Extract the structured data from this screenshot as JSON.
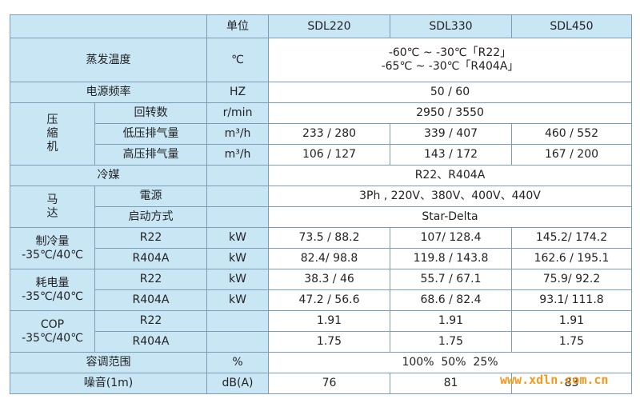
{
  "table": {
    "header": [
      "单位",
      "SDL220",
      "SDL330",
      "SDL450"
    ],
    "evap": {
      "label": "蒸发温度",
      "unit": "℃",
      "lines": [
        "-60℃ ~ -30℃「R22」",
        "-65℃ ~ -30℃「R404A」"
      ]
    },
    "power_freq": {
      "label": "电源频率",
      "unit": "HZ",
      "value": "50 / 60"
    },
    "compressor": {
      "label": [
        "压",
        "縮",
        "机"
      ],
      "rows": [
        {
          "label": "回转数",
          "unit": "r/min",
          "value": "2950 / 3550"
        },
        {
          "label": "低压排气量",
          "unit": "m³/h",
          "values": [
            "233 / 280",
            "339 / 407",
            "460 / 552"
          ]
        },
        {
          "label": "高压排气量",
          "unit": "m³/h",
          "values": [
            "106 / 127",
            "143 / 172",
            "167 / 200"
          ]
        }
      ]
    },
    "refrigerant": {
      "label": "冷媒",
      "value": "R22、R404A"
    },
    "motor": {
      "label": [
        "马",
        "达"
      ],
      "rows": [
        {
          "label": "電源",
          "value": "3Ph , 220V、380V、400V、440V"
        },
        {
          "label": "启动方式",
          "value": "Star-Delta"
        }
      ]
    },
    "cooling": {
      "label": [
        "制冷量",
        "-35℃/40℃"
      ],
      "rows": [
        {
          "label": "R22",
          "unit": "kW",
          "values": [
            "73.5 / 88.2",
            "107/ 128.4",
            "145.2/ 174.2"
          ]
        },
        {
          "label": "R404A",
          "unit": "kW",
          "values": [
            "82.4/ 98.8",
            "119.8 / 143.8",
            "162.6 / 195.1"
          ]
        }
      ]
    },
    "consumption": {
      "label": [
        "耗电量",
        "-35℃/40℃"
      ],
      "rows": [
        {
          "label": "R22",
          "unit": "kW",
          "values": [
            "38.3 / 46",
            "55.7 / 67.1",
            "75.9/ 92.2"
          ]
        },
        {
          "label": "R404A",
          "unit": "kW",
          "values": [
            "47.2 / 56.6",
            "68.6 / 82.4",
            "93.1/ 111.8"
          ]
        }
      ]
    },
    "cop": {
      "label": [
        "COP",
        "-35℃/40℃"
      ],
      "rows": [
        {
          "label": "R22",
          "values": [
            "1.91",
            "1.91",
            "1.91"
          ]
        },
        {
          "label": "R404A",
          "values": [
            "1.75",
            "1.75",
            "1.75"
          ]
        }
      ]
    },
    "capacity": {
      "label": "容调范围",
      "unit": "%",
      "value": "100%  50%  25%"
    },
    "noise": {
      "label": "噪音(1m)",
      "unit": "dB(A)",
      "values": [
        "76",
        "81",
        "83"
      ]
    }
  },
  "watermark": "www.xdln.com.cn"
}
